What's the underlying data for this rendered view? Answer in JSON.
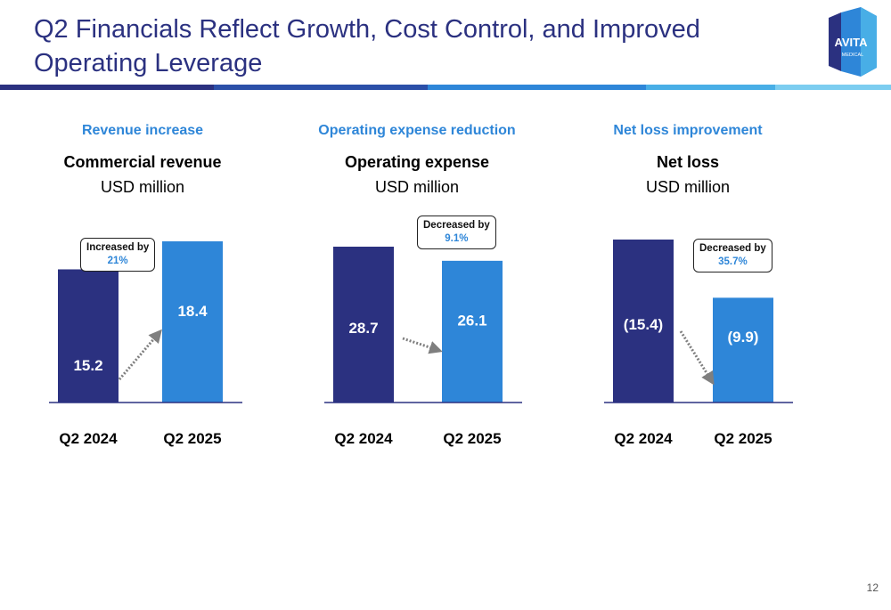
{
  "header": {
    "title": "Q2 Financials Reflect Growth, Cost Control, and Improved Operating Leverage",
    "logo_text": "AVITA",
    "logo_subtext": "MEDICAL"
  },
  "colors": {
    "navy": "#2b3180",
    "blue": "#2e86d8",
    "rule": [
      "#2b3180",
      "#2b4fa8",
      "#2e86d8",
      "#48aee6",
      "#7ccdf0"
    ]
  },
  "page_number": "12",
  "chart_data": [
    {
      "type": "bar",
      "kicker": "Revenue increase",
      "title": "Commercial revenue",
      "unit": "USD million",
      "categories": [
        "Q2 2024",
        "Q2 2025"
      ],
      "values": [
        15.2,
        18.4
      ],
      "value_labels": [
        "15.2",
        "18.4"
      ],
      "annotation": {
        "line1": "Increased by",
        "line2": "21%"
      }
    },
    {
      "type": "bar",
      "kicker": "Operating expense reduction",
      "title": "Operating expense",
      "unit": "USD million",
      "categories": [
        "Q2 2024",
        "Q2 2025"
      ],
      "values": [
        28.7,
        26.1
      ],
      "value_labels": [
        "28.7",
        "26.1"
      ],
      "annotation": {
        "line1": "Decreased by",
        "line2": "9.1%"
      }
    },
    {
      "type": "bar",
      "kicker": "Net loss improvement",
      "title": "Net loss",
      "unit": "USD million",
      "categories": [
        "Q2 2024",
        "Q2 2025"
      ],
      "values": [
        -15.4,
        -9.9
      ],
      "value_labels": [
        "(15.4)",
        "(9.9)"
      ],
      "annotation": {
        "line1": "Decreased by",
        "line2": "35.7%"
      }
    }
  ]
}
